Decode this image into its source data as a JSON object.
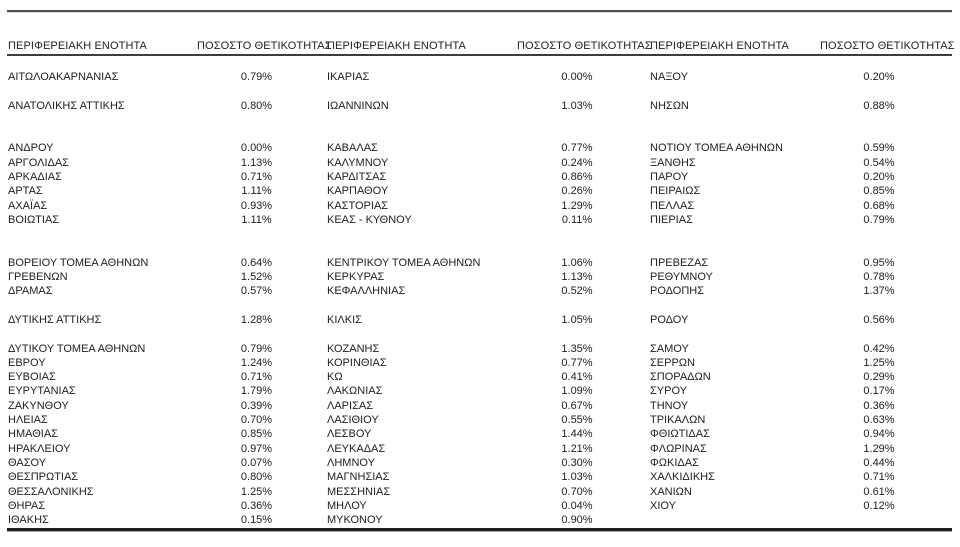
{
  "table": {
    "headers": {
      "region": "ΠΕΡΙΦΕΡΕΙΑΚΗ ΕΝΟΤΗΤΑ",
      "positivity": "ΠΟΣΟΣΤΟ ΘΕΤΙΚΟΤΗΤΑΣ"
    },
    "rows": [
      {
        "t": "s"
      },
      {
        "t": "d",
        "c": [
          "ΑΙΤΩΛΟΑΚΑΡΝΑΝΙΑΣ",
          "0.79%",
          "ΙΚΑΡΙΑΣ",
          "0.00%",
          "ΝΑΞΟΥ",
          "0.20%"
        ]
      },
      {
        "t": "s"
      },
      {
        "t": "d",
        "c": [
          "ΑΝΑΤΟΛΙΚΗΣ ΑΤΤΙΚΗΣ",
          "0.80%",
          "ΙΩΑΝΝΙΝΩΝ",
          "1.03%",
          "ΝΗΣΩΝ",
          "0.88%"
        ]
      },
      {
        "t": "s"
      },
      {
        "t": "s"
      },
      {
        "t": "d",
        "c": [
          "ΑΝΔΡΟΥ",
          "0.00%",
          "ΚΑΒΑΛΑΣ",
          "0.77%",
          "ΝΟΤΙΟΥ ΤΟΜΕΑ ΑΘΗΝΩΝ",
          "0.59%"
        ]
      },
      {
        "t": "d",
        "c": [
          "ΑΡΓΟΛΙΔΑΣ",
          "1.13%",
          "ΚΑΛΥΜΝΟΥ",
          "0.24%",
          "ΞΑΝΘΗΣ",
          "0.54%"
        ]
      },
      {
        "t": "d",
        "c": [
          "ΑΡΚΑΔΙΑΣ",
          "0.71%",
          "ΚΑΡΔΙΤΣΑΣ",
          "0.86%",
          "ΠΑΡΟΥ",
          "0.20%"
        ]
      },
      {
        "t": "d",
        "c": [
          "ΑΡΤΑΣ",
          "1.11%",
          "ΚΑΡΠΑΘΟΥ",
          "0.26%",
          "ΠΕΙΡΑΙΩΣ",
          "0.85%"
        ]
      },
      {
        "t": "d",
        "c": [
          "ΑΧΑΪΑΣ",
          "0.93%",
          "ΚΑΣΤΟΡΙΑΣ",
          "1.29%",
          "ΠΕΛΛΑΣ",
          "0.68%"
        ]
      },
      {
        "t": "d",
        "c": [
          "ΒΟΙΩΤΙΑΣ",
          "1.11%",
          "ΚΕΑΣ - ΚΥΘΝΟΥ",
          "0.11%",
          "ΠΙΕΡΙΑΣ",
          "0.79%"
        ]
      },
      {
        "t": "s"
      },
      {
        "t": "s"
      },
      {
        "t": "d",
        "c": [
          "ΒΟΡΕΙΟΥ ΤΟΜΕΑ ΑΘΗΝΩΝ",
          "0.64%",
          "ΚΕΝΤΡΙΚΟΥ ΤΟΜΕΑ ΑΘΗΝΩΝ",
          "1.06%",
          "ΠΡΕΒΕΖΑΣ",
          "0.95%"
        ]
      },
      {
        "t": "d",
        "c": [
          "ΓΡΕΒΕΝΩΝ",
          "1.52%",
          "ΚΕΡΚΥΡΑΣ",
          "1.13%",
          "ΡΕΘΥΜΝΟΥ",
          "0.78%"
        ]
      },
      {
        "t": "d",
        "c": [
          "ΔΡΑΜΑΣ",
          "0.57%",
          "ΚΕΦΑΛΛΗΝΙΑΣ",
          "0.52%",
          "ΡΟΔΟΠΗΣ",
          "1.37%"
        ]
      },
      {
        "t": "s"
      },
      {
        "t": "d",
        "c": [
          "ΔΥΤΙΚΗΣ ΑΤΤΙΚΗΣ",
          "1.28%",
          "ΚΙΛΚΙΣ",
          "1.05%",
          "ΡΟΔΟΥ",
          "0.56%"
        ]
      },
      {
        "t": "s"
      },
      {
        "t": "d",
        "c": [
          "ΔΥΤΙΚΟΥ ΤΟΜΕΑ ΑΘΗΝΩΝ",
          "0.79%",
          "ΚΟΖΑΝΗΣ",
          "1.35%",
          "ΣΑΜΟΥ",
          "0.42%"
        ]
      },
      {
        "t": "d",
        "c": [
          "ΕΒΡΟΥ",
          "1.24%",
          "ΚΟΡΙΝΘΙΑΣ",
          "0.77%",
          "ΣΕΡΡΩΝ",
          "1.25%"
        ]
      },
      {
        "t": "d",
        "c": [
          "ΕΥΒΟΙΑΣ",
          "0.71%",
          "ΚΩ",
          "0.41%",
          "ΣΠΟΡΑΔΩΝ",
          "0.29%"
        ]
      },
      {
        "t": "d",
        "c": [
          "ΕΥΡΥΤΑΝΙΑΣ",
          "1.79%",
          "ΛΑΚΩΝΙΑΣ",
          "1.09%",
          "ΣΥΡΟΥ",
          "0.17%"
        ]
      },
      {
        "t": "d",
        "c": [
          "ΖΑΚΥΝΘΟΥ",
          "0.39%",
          "ΛΑΡΙΣΑΣ",
          "0.67%",
          "ΤΗΝΟΥ",
          "0.36%"
        ]
      },
      {
        "t": "d",
        "c": [
          "ΗΛΕΙΑΣ",
          "0.70%",
          "ΛΑΣΙΘΙΟΥ",
          "0.55%",
          "ΤΡΙΚΑΛΩΝ",
          "0.63%"
        ]
      },
      {
        "t": "d",
        "c": [
          "ΗΜΑΘΙΑΣ",
          "0.85%",
          "ΛΕΣΒΟΥ",
          "1.44%",
          "ΦΘΙΩΤΙΔΑΣ",
          "0.94%"
        ]
      },
      {
        "t": "d",
        "c": [
          "ΗΡΑΚΛΕΙΟΥ",
          "0.97%",
          "ΛΕΥΚΑΔΑΣ",
          "1.21%",
          "ΦΛΩΡΙΝΑΣ",
          "1.29%"
        ]
      },
      {
        "t": "d",
        "c": [
          "ΘΑΣΟΥ",
          "0.07%",
          "ΛΗΜΝΟΥ",
          "0.30%",
          "ΦΩΚΙΔΑΣ",
          "0.44%"
        ]
      },
      {
        "t": "d",
        "c": [
          "ΘΕΣΠΡΩΤΙΑΣ",
          "0.80%",
          "ΜΑΓΝΗΣΙΑΣ",
          "1.03%",
          "ΧΑΛΚΙΔΙΚΗΣ",
          "0.71%"
        ]
      },
      {
        "t": "d",
        "c": [
          "ΘΕΣΣΑΛΟΝΙΚΗΣ",
          "1.25%",
          "ΜΕΣΣΗΝΙΑΣ",
          "0.70%",
          "ΧΑΝΙΩΝ",
          "0.61%"
        ]
      },
      {
        "t": "d",
        "c": [
          "ΘΗΡΑΣ",
          "0.36%",
          "ΜΗΛΟΥ",
          "0.04%",
          "ΧΙΟΥ",
          "0.12%"
        ]
      },
      {
        "t": "d",
        "c": [
          "ΙΘΑΚΗΣ",
          "0.15%",
          "ΜΥΚΟΝΟΥ",
          "0.90%",
          "",
          ""
        ]
      }
    ],
    "colors": {
      "text": "#212121",
      "top_rule": "#4f4f4f",
      "header_rule": "#3d3d3d",
      "bottom_rule": "#1c1c1c",
      "background": "#ffffff"
    }
  }
}
